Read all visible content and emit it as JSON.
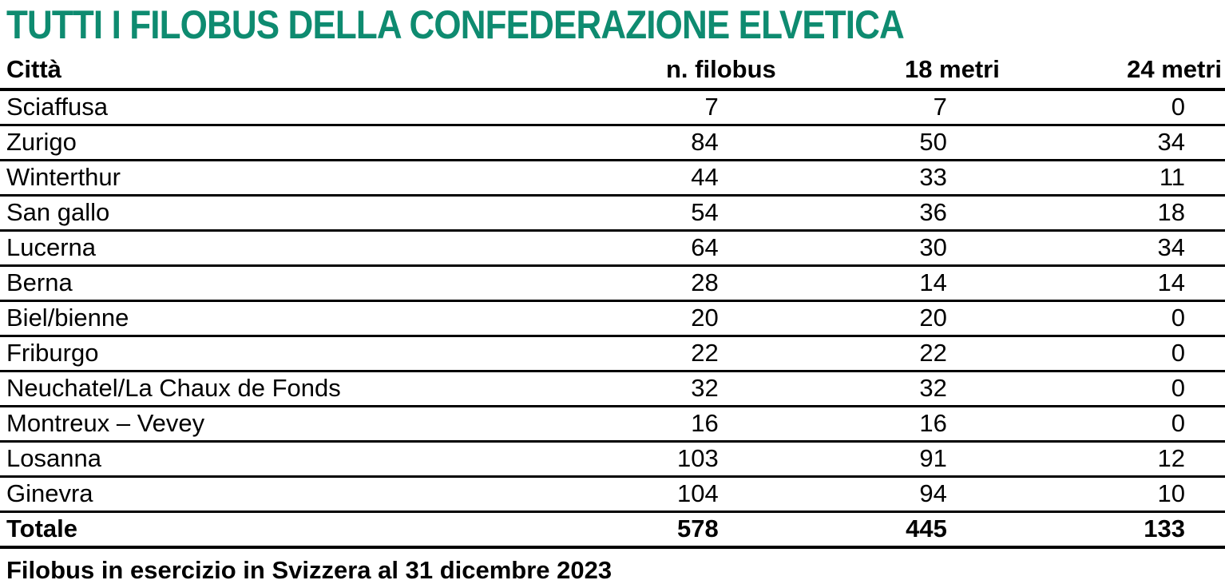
{
  "title": "TUTTI I FILOBUS DELLA CONFEDERAZIONE ELVETICA",
  "colors": {
    "title_teal": "#0E8B70",
    "text": "#000000",
    "background": "#FFFFFF"
  },
  "table": {
    "columns": [
      "Città",
      "n. filobus",
      "18 metri",
      "24 metri"
    ],
    "rows": [
      [
        "Sciaffusa",
        "7",
        "7",
        "0"
      ],
      [
        "Zurigo",
        "84",
        "50",
        "34"
      ],
      [
        "Winterthur",
        "44",
        "33",
        "11"
      ],
      [
        "San gallo",
        "54",
        "36",
        "18"
      ],
      [
        "Lucerna",
        "64",
        "30",
        "34"
      ],
      [
        "Berna",
        "28",
        "14",
        "14"
      ],
      [
        "Biel/bienne",
        "20",
        "20",
        "0"
      ],
      [
        "Friburgo",
        "22",
        "22",
        "0"
      ],
      [
        "Neuchatel/La Chaux de Fonds",
        "32",
        "32",
        "0"
      ],
      [
        "Montreux – Vevey",
        "16",
        "16",
        "0"
      ],
      [
        "Losanna",
        "103",
        "91",
        "12"
      ],
      [
        "Ginevra",
        "104",
        "94",
        "10"
      ]
    ],
    "total": [
      "Totale",
      "578",
      "445",
      "133"
    ]
  },
  "caption": "Filobus in esercizio in Svizzera al 31 dicembre 2023"
}
